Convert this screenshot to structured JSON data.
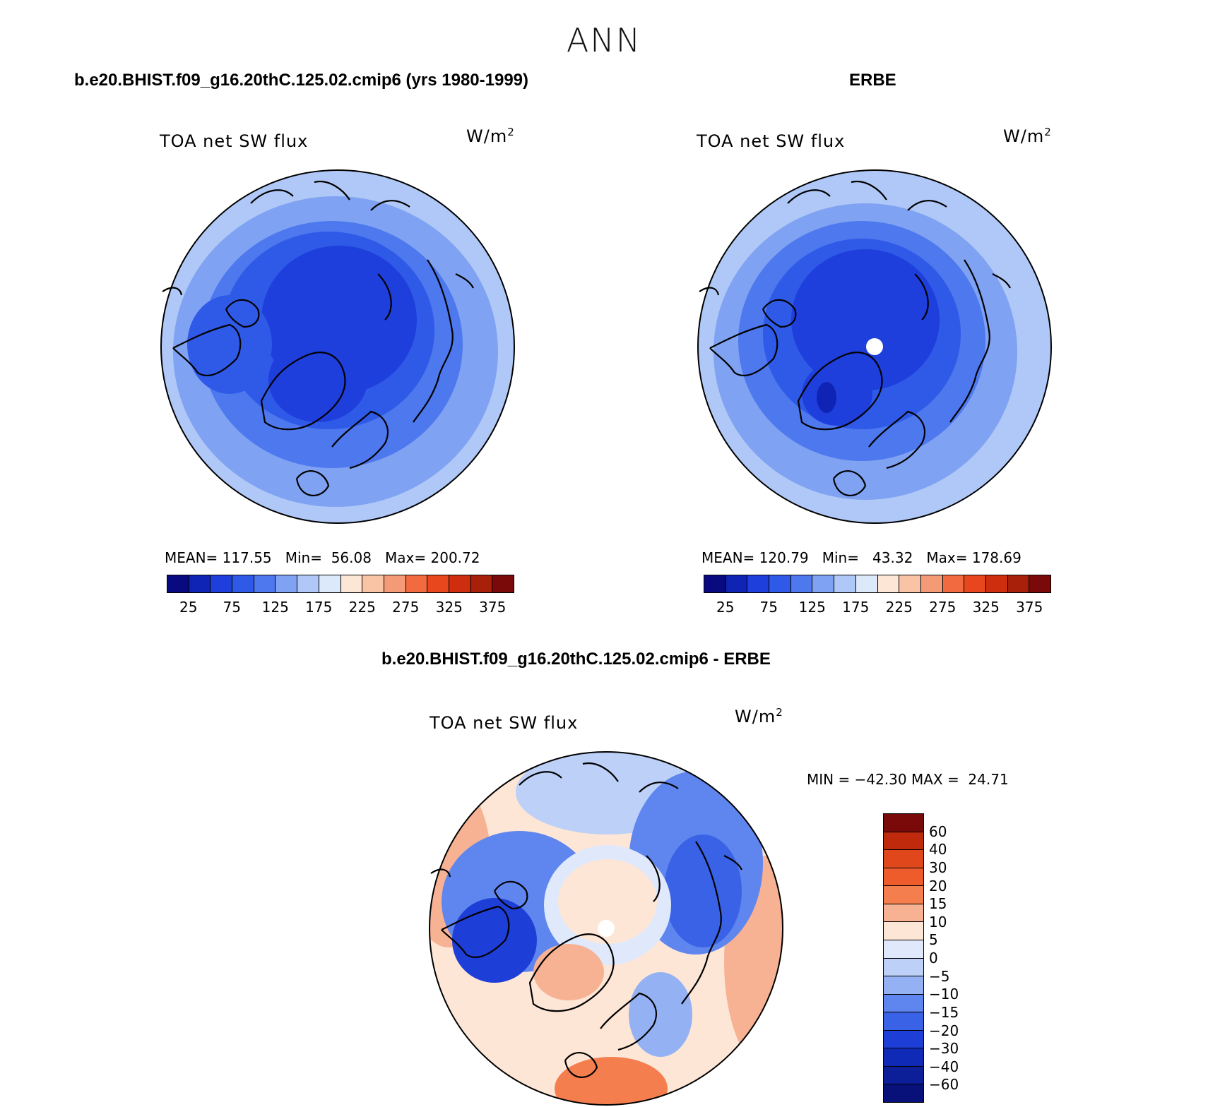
{
  "figure": {
    "title": "ANN"
  },
  "chart_data": [
    {
      "type": "heatmap",
      "projection": "north-polar-stereographic",
      "case_title": "b.e20.BHIST.f09_g16.20thC.125.02.cmip6 (yrs 1980-1999)",
      "variable": "TOA net SW flux",
      "units": "W/m",
      "units_exp": "2",
      "stats": {
        "mean_label": "MEAN=",
        "mean": "117.55",
        "min_label": "Min=",
        "min": "56.08",
        "max_label": "Max=",
        "max": "200.72"
      },
      "colorbar_ticks": [
        "25",
        "75",
        "125",
        "175",
        "225",
        "275",
        "325",
        "375"
      ]
    },
    {
      "type": "heatmap",
      "projection": "north-polar-stereographic",
      "case_title": "ERBE",
      "variable": "TOA net SW flux",
      "units": "W/m",
      "units_exp": "2",
      "stats": {
        "mean_label": "MEAN=",
        "mean": "120.79",
        "min_label": "Min=",
        "min": "43.32",
        "max_label": "Max=",
        "max": "178.69"
      },
      "colorbar_ticks": [
        "25",
        "75",
        "125",
        "175",
        "225",
        "275",
        "325",
        "375"
      ]
    },
    {
      "type": "heatmap",
      "projection": "north-polar-stereographic",
      "case_title": "b.e20.BHIST.f09_g16.20thC.125.02.cmip6 - ERBE",
      "variable": "TOA net SW flux",
      "units": "W/m",
      "units_exp": "2",
      "stats_text": "MIN = −42.30 MAX =  24.71",
      "colorbar_ticks": [
        "60",
        "40",
        "30",
        "20",
        "15",
        "10",
        "5",
        "0",
        "−5",
        "−10",
        "−15",
        "−20",
        "−30",
        "−40",
        "−60"
      ]
    }
  ],
  "colors": {
    "abs_scale": [
      "#0a0a80",
      "#0f24b4",
      "#1e3fdc",
      "#2f5ae8",
      "#4d78ee",
      "#7fa2f2",
      "#b0c8f7",
      "#dce9fb",
      "#fde6d6",
      "#f9c3a6",
      "#f59a76",
      "#f26a40",
      "#e8461c",
      "#cf2e0e",
      "#a8200a",
      "#7a0a0a"
    ],
    "diff_scale_top_to_bottom": [
      "#7a0a0a",
      "#c02a0c",
      "#e0481c",
      "#ef5c2c",
      "#f47e4e",
      "#f7b294",
      "#fde6d6",
      "#dfe9fb",
      "#bcd0f8",
      "#94b2f3",
      "#5f86ee",
      "#3a62e6",
      "#1e3ed8",
      "#102ab8",
      "#0c1e98",
      "#08107a"
    ]
  }
}
